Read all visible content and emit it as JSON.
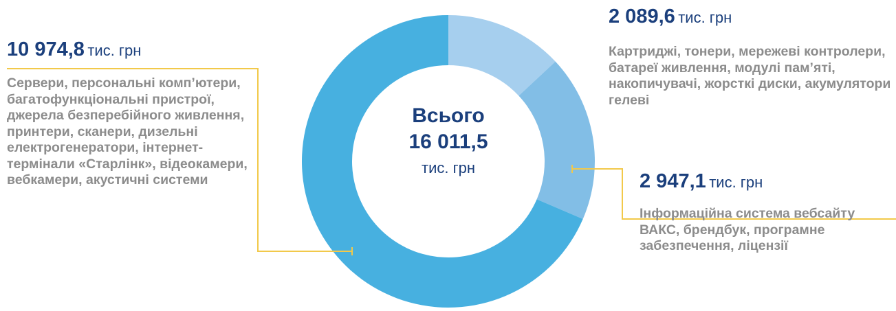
{
  "chart_data": {
    "type": "pie",
    "categories": [
      "Картриджі, тонери, мережеві контролери, батареї живлення, модулі пам’яті, накопичувачі, жорсткі диски, акумулятори гелеві",
      "Інформаційна система вебсайту ВАКС, брендбук, програмне забезпечення, ліцензії",
      "Сервери, персональні комп’ютери, багатофункціональні пристрої, джерела безперебійного живлення, принтери, сканери, дизельні електрогенератори, інтернет-термінали «Старлінк», відеокамери, вебкамери, акустичні системи"
    ],
    "values": [
      2089.6,
      2947.1,
      10974.8
    ],
    "value_labels": [
      "2 089,6",
      "2 947,1",
      "10 974,8"
    ],
    "colors": [
      "#a6cfee",
      "#82bee6",
      "#47b0e0"
    ],
    "unit": "тис. грн",
    "center_title": "Всього",
    "total": 16011.5,
    "total_label": "16 011,5"
  }
}
